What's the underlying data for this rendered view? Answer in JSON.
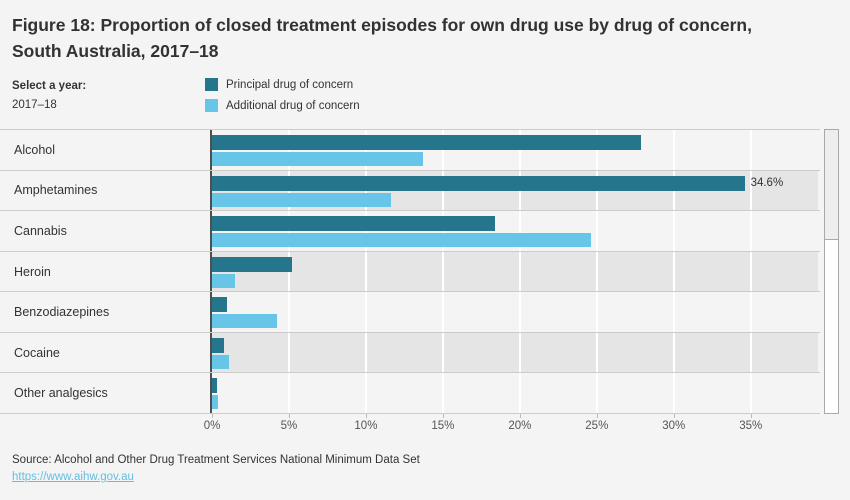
{
  "header": {
    "title": "Figure 18: Proportion of closed treatment episodes for own drug use by drug of concern, South Australia, 2017–18"
  },
  "controls": {
    "year_label": "Select a year:",
    "year_value": "2017–18"
  },
  "legend": {
    "items": [
      {
        "label": "Principal drug of concern",
        "color": "#25758d"
      },
      {
        "label": "Additional drug of concern",
        "color": "#67c5e8"
      }
    ]
  },
  "chart_data": {
    "type": "bar",
    "orientation": "horizontal",
    "title": "Figure 18: Proportion of closed treatment episodes for own drug use by drug of concern, South Australia, 2017–18",
    "categories": [
      "Alcohol",
      "Amphetamines",
      "Cannabis",
      "Heroin",
      "Benzodiazepines",
      "Cocaine",
      "Other analgesics"
    ],
    "series": [
      {
        "name": "Principal drug of concern",
        "color": "#25758d",
        "values": [
          27.9,
          34.6,
          18.4,
          5.2,
          1.0,
          0.8,
          0.3
        ]
      },
      {
        "name": "Additional drug of concern",
        "color": "#67c5e8",
        "values": [
          13.7,
          11.6,
          24.6,
          1.5,
          4.2,
          1.1,
          0.4
        ]
      }
    ],
    "data_labels": [
      {
        "series_index": 0,
        "category_index": 1,
        "text": "34.6%"
      }
    ],
    "x_ticks": [
      "0%",
      "5%",
      "10%",
      "15%",
      "20%",
      "25%",
      "30%",
      "35%"
    ],
    "x_tick_values": [
      0,
      5,
      10,
      15,
      20,
      25,
      30,
      35
    ],
    "xlim": [
      0,
      39.5
    ],
    "xlabel": "",
    "ylabel": "",
    "grid": "vertical-white-on-alternating-bands",
    "legend_position": "top"
  },
  "footer": {
    "source": "Source: Alcohol and Other Drug Treatment Services National Minimum Data Set",
    "link": "https://www.aihw.gov.au"
  },
  "colors": {
    "background": "#f4f4f4",
    "band": "#f4f4f4",
    "band_alt": "#e5e5e5",
    "axis_line": "#4f4f4f",
    "separator": "#cccccc",
    "text": "#333333",
    "tick_text": "#555555",
    "link": "#63bee3"
  }
}
